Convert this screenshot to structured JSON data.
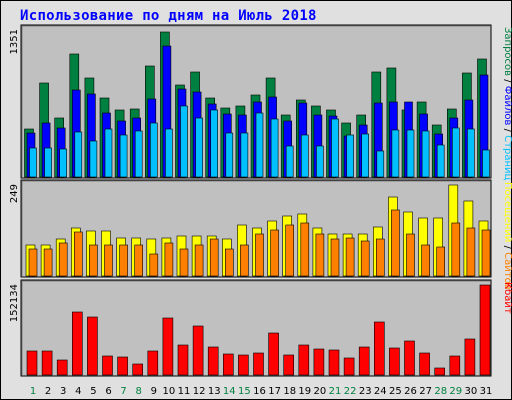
{
  "title": "Использование по дням на Июль 2018",
  "colors": {
    "hits": "#008040",
    "files": "#0000ff",
    "pages": "#00c0ff",
    "visits": "#ffff00",
    "sites": "#ff8000",
    "kbytes": "#ff0000",
    "weekday_label": "#000000",
    "weekend_label": "#008040",
    "title": "#0000ff"
  },
  "right_labels": {
    "top": [
      {
        "text": "Запросов",
        "color": "#008040"
      },
      {
        "text": " / ",
        "color": "#000000"
      },
      {
        "text": "Файлов",
        "color": "#0000ff"
      },
      {
        "text": " / ",
        "color": "#000000"
      },
      {
        "text": "Страниц",
        "color": "#00c0ff"
      }
    ],
    "middle": [
      {
        "text": "Посещений",
        "color": "#ffff00"
      },
      {
        "text": " / ",
        "color": "#000000"
      },
      {
        "text": "Сайтов",
        "color": "#ff8000"
      }
    ],
    "bottom": [
      {
        "text": "Кбайт",
        "color": "#ff0000"
      }
    ]
  },
  "chart_data": [
    {
      "type": "bar",
      "panel": "top",
      "y_max_label": "1351",
      "ylim": [
        0,
        1351
      ],
      "x": [
        "1",
        "2",
        "3",
        "4",
        "5",
        "6",
        "7",
        "8",
        "9",
        "10",
        "11",
        "12",
        "13",
        "14",
        "15",
        "16",
        "17",
        "18",
        "19",
        "20",
        "21",
        "22",
        "23",
        "24",
        "25",
        "26",
        "27",
        "28",
        "29",
        "30",
        "31"
      ],
      "weekend_days": [
        "1",
        "7",
        "8",
        "14",
        "15",
        "21",
        "22",
        "28",
        "29"
      ],
      "series": [
        {
          "name": "Запросов",
          "values": [
            450,
            880,
            550,
            1150,
            920,
            740,
            620,
            630,
            1030,
            1351,
            860,
            980,
            740,
            640,
            660,
            760,
            920,
            580,
            720,
            660,
            620,
            500,
            580,
            980,
            1020,
            620,
            700,
            480,
            630,
            970,
            1100
          ]
        },
        {
          "name": "Файлов",
          "values": [
            410,
            500,
            460,
            810,
            770,
            600,
            520,
            550,
            730,
            1220,
            820,
            790,
            680,
            590,
            580,
            700,
            750,
            520,
            690,
            580,
            570,
            380,
            480,
            690,
            700,
            700,
            590,
            400,
            550,
            720,
            950
          ]
        },
        {
          "name": "Страниц",
          "values": [
            270,
            270,
            260,
            420,
            340,
            450,
            390,
            430,
            500,
            450,
            660,
            550,
            620,
            410,
            410,
            600,
            540,
            290,
            390,
            290,
            540,
            390,
            400,
            240,
            440,
            440,
            430,
            300,
            460,
            450,
            250
          ]
        }
      ]
    },
    {
      "type": "bar",
      "panel": "middle",
      "y_max_label": "249",
      "ylim": [
        0,
        249
      ],
      "x": [
        "1",
        "2",
        "3",
        "4",
        "5",
        "6",
        "7",
        "8",
        "9",
        "10",
        "11",
        "12",
        "13",
        "14",
        "15",
        "16",
        "17",
        "18",
        "19",
        "20",
        "21",
        "22",
        "23",
        "24",
        "25",
        "26",
        "27",
        "28",
        "29",
        "30",
        "31"
      ],
      "series": [
        {
          "name": "Посещений",
          "values": [
            84,
            84,
            100,
            132,
            122,
            122,
            105,
            105,
            100,
            105,
            110,
            110,
            110,
            100,
            140,
            132,
            150,
            165,
            170,
            132,
            115,
            115,
            115,
            135,
            215,
            175,
            160,
            160,
            250,
            205,
            150
          ]
        },
        {
          "name": "Сайтов",
          "values": [
            75,
            75,
            90,
            120,
            85,
            85,
            85,
            85,
            60,
            90,
            75,
            85,
            100,
            75,
            85,
            115,
            125,
            140,
            145,
            115,
            100,
            105,
            95,
            100,
            180,
            115,
            85,
            80,
            145,
            130,
            125
          ]
        }
      ]
    },
    {
      "type": "bar",
      "panel": "bottom",
      "y_max_label": "152134",
      "ylim": [
        0,
        152134
      ],
      "x": [
        "1",
        "2",
        "3",
        "4",
        "5",
        "6",
        "7",
        "8",
        "9",
        "10",
        "11",
        "12",
        "13",
        "14",
        "15",
        "16",
        "17",
        "18",
        "19",
        "20",
        "21",
        "22",
        "23",
        "24",
        "25",
        "26",
        "27",
        "28",
        "29",
        "30",
        "31"
      ],
      "series": [
        {
          "name": "Кбайт",
          "values": [
            40000,
            40000,
            26000,
            107000,
            98000,
            32000,
            30000,
            18000,
            40000,
            96000,
            50000,
            82000,
            48000,
            36000,
            33000,
            38000,
            71000,
            33000,
            51000,
            44000,
            42000,
            29000,
            47000,
            89000,
            46000,
            58000,
            38000,
            12000,
            32000,
            61000,
            152134
          ]
        }
      ]
    }
  ]
}
